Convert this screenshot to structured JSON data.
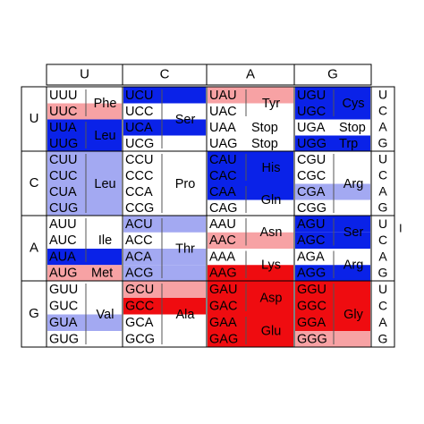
{
  "colors": {
    "deep_blue": "#0a22e8",
    "light_blue": "#a3a9f2",
    "light_red": "#f7a2a4",
    "deep_red": "#ef0c10",
    "white": "#ffffff",
    "grid": "#000000"
  },
  "header_letters": [
    "U",
    "C",
    "A",
    "G"
  ],
  "row_letters": [
    "U",
    "C",
    "A",
    "G"
  ],
  "third_letters": [
    "U",
    "C",
    "A",
    "G"
  ],
  "stray_mark": "I",
  "cells": [
    {
      "codons": [
        "UUU",
        "UUC",
        "UUA",
        "UUG"
      ],
      "fills": [
        "white",
        "light_red",
        "deep_blue",
        "deep_blue"
      ],
      "groups": [
        {
          "span": [
            0,
            1
          ],
          "label": "Phe"
        },
        {
          "span": [
            2,
            3
          ],
          "label": "Leu"
        }
      ]
    },
    {
      "codons": [
        "UCU",
        "UCC",
        "UCA",
        "UCG"
      ],
      "fills": [
        "deep_blue",
        "white",
        "deep_blue",
        "white"
      ],
      "groups": [
        {
          "span": [
            0,
            3
          ],
          "label": "Ser"
        }
      ]
    },
    {
      "codons": [
        "UAU",
        "UAC",
        "UAA",
        "UAG"
      ],
      "fills": [
        "light_red",
        "white",
        "white",
        "white"
      ],
      "groups": [
        {
          "span": [
            0,
            1
          ],
          "label": "Tyr"
        },
        {
          "span": [
            2,
            2
          ],
          "label": "Stop"
        },
        {
          "span": [
            3,
            3
          ],
          "label": "Stop"
        }
      ]
    },
    {
      "codons": [
        "UGU",
        "UGC",
        "UGA",
        "UGG"
      ],
      "fills": [
        "deep_blue",
        "deep_blue",
        "white",
        "deep_blue"
      ],
      "groups": [
        {
          "span": [
            0,
            1
          ],
          "label": "Cys"
        },
        {
          "span": [
            2,
            2
          ],
          "label": "Stop"
        },
        {
          "span": [
            3,
            3
          ],
          "label": "Trp"
        }
      ]
    },
    {
      "codons": [
        "CUU",
        "CUC",
        "CUA",
        "CUG"
      ],
      "fills": [
        "light_blue",
        "light_blue",
        "light_blue",
        "light_blue"
      ],
      "groups": [
        {
          "span": [
            0,
            3
          ],
          "label": "Leu"
        }
      ]
    },
    {
      "codons": [
        "CCU",
        "CCC",
        "CCA",
        "CCG"
      ],
      "fills": [
        "white",
        "white",
        "white",
        "white"
      ],
      "groups": [
        {
          "span": [
            0,
            3
          ],
          "label": "Pro"
        }
      ]
    },
    {
      "codons": [
        "CAU",
        "CAC",
        "CAA",
        "CAG"
      ],
      "fills": [
        "deep_blue",
        "deep_blue",
        "deep_blue",
        "white"
      ],
      "groups": [
        {
          "span": [
            0,
            1
          ],
          "label": "His"
        },
        {
          "span": [
            2,
            3
          ],
          "label": "Gln"
        }
      ]
    },
    {
      "codons": [
        "CGU",
        "CGC",
        "CGA",
        "CGG"
      ],
      "fills": [
        "white",
        "white",
        "light_blue",
        "white"
      ],
      "groups": [
        {
          "span": [
            0,
            3
          ],
          "label": "Arg"
        }
      ]
    },
    {
      "codons": [
        "AUU",
        "AUC",
        "AUA",
        "AUG"
      ],
      "fills": [
        "white",
        "white",
        "deep_blue",
        "light_red"
      ],
      "groups": [
        {
          "span": [
            0,
            2
          ],
          "label": "Ile"
        },
        {
          "span": [
            3,
            3
          ],
          "label": "Met"
        }
      ]
    },
    {
      "codons": [
        "ACU",
        "ACC",
        "ACA",
        "ACG"
      ],
      "fills": [
        "light_blue",
        "white",
        "light_blue",
        "light_blue"
      ],
      "groups": [
        {
          "span": [
            0,
            3
          ],
          "label": "Thr"
        }
      ]
    },
    {
      "codons": [
        "AAU",
        "AAC",
        "AAA",
        "AAG"
      ],
      "fills": [
        "white",
        "light_red",
        "white",
        "deep_red"
      ],
      "groups": [
        {
          "span": [
            0,
            1
          ],
          "label": "Asn"
        },
        {
          "span": [
            2,
            3
          ],
          "label": "Lys"
        }
      ]
    },
    {
      "codons": [
        "AGU",
        "AGC",
        "AGA",
        "AGG"
      ],
      "fills": [
        "deep_blue",
        "deep_blue",
        "white",
        "deep_blue"
      ],
      "groups": [
        {
          "span": [
            0,
            1
          ],
          "label": "Ser"
        },
        {
          "span": [
            2,
            3
          ],
          "label": "Arg"
        }
      ]
    },
    {
      "codons": [
        "GUU",
        "GUC",
        "GUA",
        "GUG"
      ],
      "fills": [
        "white",
        "white",
        "light_blue",
        "white"
      ],
      "groups": [
        {
          "span": [
            0,
            3
          ],
          "label": "Val"
        }
      ]
    },
    {
      "codons": [
        "GCU",
        "GCC",
        "GCA",
        "GCG"
      ],
      "fills": [
        "light_red",
        "deep_red",
        "white",
        "white"
      ],
      "groups": [
        {
          "span": [
            0,
            3
          ],
          "label": "Ala"
        }
      ]
    },
    {
      "codons": [
        "GAU",
        "GAC",
        "GAA",
        "GAG"
      ],
      "fills": [
        "deep_red",
        "deep_red",
        "deep_red",
        "deep_red"
      ],
      "groups": [
        {
          "span": [
            0,
            1
          ],
          "label": "Asp"
        },
        {
          "span": [
            2,
            3
          ],
          "label": "Glu"
        }
      ]
    },
    {
      "codons": [
        "GGU",
        "GGC",
        "GGA",
        "GGG"
      ],
      "fills": [
        "deep_red",
        "deep_red",
        "deep_red",
        "light_red"
      ],
      "groups": [
        {
          "span": [
            0,
            3
          ],
          "label": "Gly"
        }
      ]
    }
  ]
}
